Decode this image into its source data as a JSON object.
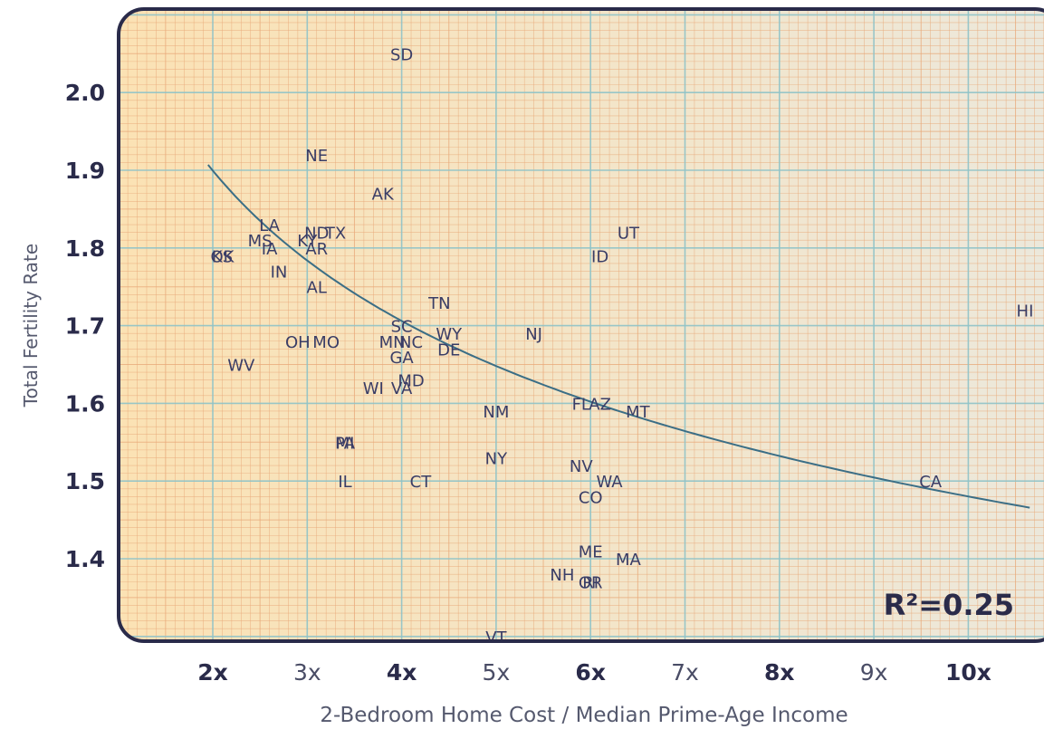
{
  "chart_data": {
    "type": "scatter",
    "xlabel": "2-Bedroom Home Cost / Median Prime-Age Income",
    "ylabel": "Total Fertility Rate",
    "x_ticks": [
      {
        "value": 2,
        "label": "2x",
        "bold": true
      },
      {
        "value": 3,
        "label": "3x",
        "bold": false
      },
      {
        "value": 4,
        "label": "4x",
        "bold": true
      },
      {
        "value": 5,
        "label": "5x",
        "bold": false
      },
      {
        "value": 6,
        "label": "6x",
        "bold": true
      },
      {
        "value": 7,
        "label": "7x",
        "bold": false
      },
      {
        "value": 8,
        "label": "8x",
        "bold": true
      },
      {
        "value": 9,
        "label": "9x",
        "bold": false
      },
      {
        "value": 10,
        "label": "10x",
        "bold": true
      }
    ],
    "y_ticks": [
      {
        "value": 1.4,
        "label": "1.4"
      },
      {
        "value": 1.5,
        "label": "1.5"
      },
      {
        "value": 1.6,
        "label": "1.6"
      },
      {
        "value": 1.7,
        "label": "1.7"
      },
      {
        "value": 1.8,
        "label": "1.8"
      },
      {
        "value": 1.9,
        "label": "1.9"
      },
      {
        "value": 2.0,
        "label": "2.0"
      }
    ],
    "xlim": [
      1.0,
      10.8
    ],
    "ylim": [
      1.29,
      2.1
    ],
    "grid": true,
    "annotation": "R²=0.25",
    "trendline": {
      "type": "power",
      "a": 2.115,
      "b": -0.155,
      "x_start": 1.95,
      "x_end": 10.65
    },
    "points": [
      {
        "label": "SD",
        "x": 4.0,
        "y": 2.05
      },
      {
        "label": "NE",
        "x": 3.1,
        "y": 1.92
      },
      {
        "label": "AK",
        "x": 3.8,
        "y": 1.87
      },
      {
        "label": "LA",
        "x": 2.6,
        "y": 1.83
      },
      {
        "label": "ND",
        "x": 3.1,
        "y": 1.82
      },
      {
        "label": "TX",
        "x": 3.3,
        "y": 1.82
      },
      {
        "label": "MS",
        "x": 2.5,
        "y": 1.81
      },
      {
        "label": "KY",
        "x": 3.0,
        "y": 1.81
      },
      {
        "label": "IA",
        "x": 2.6,
        "y": 1.8
      },
      {
        "label": "AR",
        "x": 3.1,
        "y": 1.8
      },
      {
        "label": "OK",
        "x": 2.1,
        "y": 1.79
      },
      {
        "label": "KS",
        "x": 2.1,
        "y": 1.79
      },
      {
        "label": "UT",
        "x": 6.4,
        "y": 1.82
      },
      {
        "label": "ID",
        "x": 6.1,
        "y": 1.79
      },
      {
        "label": "IN",
        "x": 2.7,
        "y": 1.77
      },
      {
        "label": "AL",
        "x": 3.1,
        "y": 1.75
      },
      {
        "label": "TN",
        "x": 4.4,
        "y": 1.73
      },
      {
        "label": "HI",
        "x": 10.6,
        "y": 1.72
      },
      {
        "label": "SC",
        "x": 4.0,
        "y": 1.7
      },
      {
        "label": "WY",
        "x": 4.5,
        "y": 1.69
      },
      {
        "label": "NJ",
        "x": 5.4,
        "y": 1.69
      },
      {
        "label": "OH",
        "x": 2.9,
        "y": 1.68
      },
      {
        "label": "MO",
        "x": 3.2,
        "y": 1.68
      },
      {
        "label": "MN",
        "x": 3.9,
        "y": 1.68
      },
      {
        "label": "NC",
        "x": 4.1,
        "y": 1.68
      },
      {
        "label": "DE",
        "x": 4.5,
        "y": 1.67
      },
      {
        "label": "GA",
        "x": 4.0,
        "y": 1.66
      },
      {
        "label": "WV",
        "x": 2.3,
        "y": 1.65
      },
      {
        "label": "MD",
        "x": 4.1,
        "y": 1.63
      },
      {
        "label": "WI",
        "x": 3.7,
        "y": 1.62
      },
      {
        "label": "VA",
        "x": 4.0,
        "y": 1.62
      },
      {
        "label": "FL",
        "x": 5.9,
        "y": 1.6
      },
      {
        "label": "AZ",
        "x": 6.1,
        "y": 1.6
      },
      {
        "label": "MT",
        "x": 6.5,
        "y": 1.59
      },
      {
        "label": "NM",
        "x": 5.0,
        "y": 1.59
      },
      {
        "label": "MI",
        "x": 3.4,
        "y": 1.55
      },
      {
        "label": "PA",
        "x": 3.4,
        "y": 1.55
      },
      {
        "label": "NY",
        "x": 5.0,
        "y": 1.53
      },
      {
        "label": "NV",
        "x": 5.9,
        "y": 1.52
      },
      {
        "label": "IL",
        "x": 3.4,
        "y": 1.5
      },
      {
        "label": "CT",
        "x": 4.2,
        "y": 1.5
      },
      {
        "label": "WA",
        "x": 6.2,
        "y": 1.5
      },
      {
        "label": "CA",
        "x": 9.6,
        "y": 1.5
      },
      {
        "label": "CO",
        "x": 6.0,
        "y": 1.48
      },
      {
        "label": "ME",
        "x": 6.0,
        "y": 1.41
      },
      {
        "label": "MA",
        "x": 6.4,
        "y": 1.4
      },
      {
        "label": "NH",
        "x": 5.7,
        "y": 1.38
      },
      {
        "label": "OR",
        "x": 6.0,
        "y": 1.37
      },
      {
        "label": "RI",
        "x": 6.0,
        "y": 1.37
      },
      {
        "label": "VT",
        "x": 5.0,
        "y": 1.3
      }
    ]
  },
  "colors": {
    "frame": "#2a2b4a",
    "text": "#2a2b4a",
    "point_label": "#3a3d66",
    "trendline": "#3b6e86",
    "grid_major": "#8fc3c8",
    "grid_minor": "#e8a878",
    "bg_left": "#fbe2b4",
    "bg_right": "#ece8dc",
    "axis_title": "#55596e"
  }
}
